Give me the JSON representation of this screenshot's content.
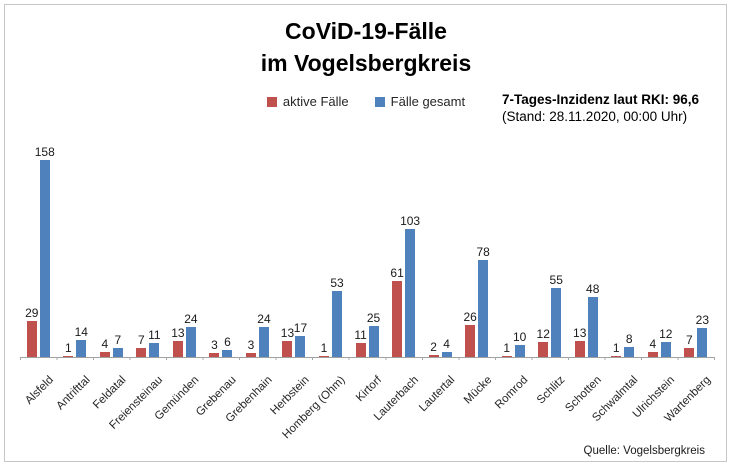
{
  "title": {
    "line1": "CoViD-19-Fälle",
    "line2": "im Vogelsbergkreis"
  },
  "legend": [
    {
      "label": "aktive Fälle",
      "color": "#C0504D"
    },
    {
      "label": "Fälle gesamt",
      "color": "#4F81BD"
    }
  ],
  "info": {
    "line1": "7-Tages-Inzidenz laut RKI: 96,6",
    "line2": "(Stand: 28.11.2020, 00:00 Uhr)"
  },
  "source": "Quelle: Vogelsbergkreis",
  "colors": {
    "active": "#C0504D",
    "total": "#4F81BD",
    "axis": "#a0a0a0"
  },
  "chart_data": {
    "type": "bar",
    "title": "CoViD-19-Fälle im Vogelsbergkreis",
    "xlabel": "",
    "ylabel": "",
    "categories": [
      "Alsfeld",
      "Antrifttal",
      "Feldatal",
      "Freiensteinau",
      "Gemünden",
      "Grebenau",
      "Grebenhain",
      "Herbstein",
      "Homberg (Ohm)",
      "Kirtorf",
      "Lauterbach",
      "Lautertal",
      "Mücke",
      "Romrod",
      "Schlitz",
      "Schotten",
      "Schwalmtal",
      "Ulrichstein",
      "Wartenberg"
    ],
    "series": [
      {
        "name": "aktive Fälle",
        "color": "#C0504D",
        "values": [
          29,
          1,
          4,
          7,
          13,
          3,
          3,
          13,
          1,
          11,
          61,
          2,
          26,
          1,
          12,
          13,
          1,
          4,
          7
        ]
      },
      {
        "name": "Fälle gesamt",
        "color": "#4F81BD",
        "values": [
          158,
          14,
          7,
          11,
          24,
          6,
          24,
          17,
          53,
          25,
          103,
          4,
          78,
          10,
          55,
          48,
          8,
          12,
          23
        ]
      }
    ],
    "ylim": [
      0,
      160
    ],
    "grid": false,
    "data_labels": true,
    "legend_position": "top-center",
    "x_label_rotation": -45,
    "annotations": [
      "7-Tages-Inzidenz laut RKI: 96,6",
      "(Stand: 28.11.2020, 00:00 Uhr)",
      "Quelle: Vogelsbergkreis"
    ]
  }
}
